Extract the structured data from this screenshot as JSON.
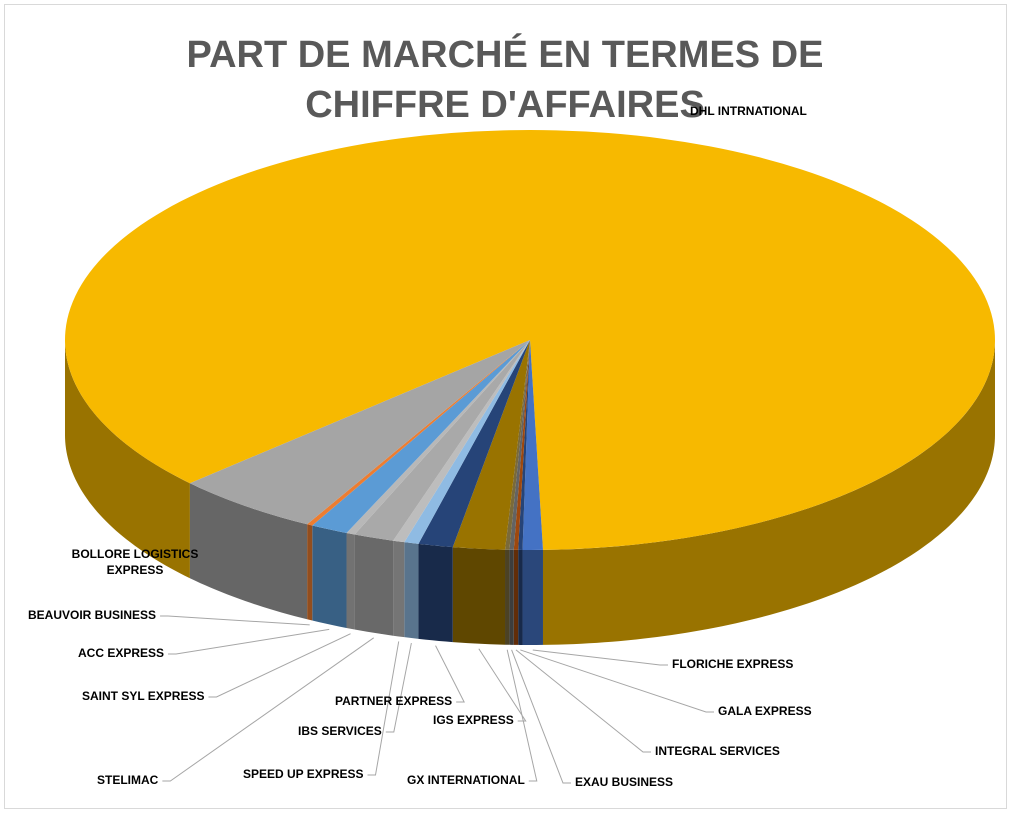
{
  "chart_data": {
    "type": "pie3d",
    "title": "PART DE MARCHÉ EN TERMES DE CHIFFRE D'AFFAIRES",
    "categories": [
      "DHL INTRNATIONAL",
      "FLORICHE EXPRESS",
      "GALA EXPRESS",
      "INTEGRAL SERVICES",
      "EXAU BUSINESS",
      "GX INTERNATIONAL",
      "IGS EXPRESS",
      "PARTNER EXPRESS",
      "IBS SERVICES",
      "SPEED UP EXPRESS",
      "STELIMAC",
      "SAINT SYL EXPRESS",
      "ACC EXPRESS",
      "BEAUVOIR BUSINESS",
      "BOLLORE LOGISTICS EXPRESS"
    ],
    "values": [
      86.5,
      0.7,
      0.15,
      0.15,
      0.15,
      0.15,
      1.8,
      1.2,
      0.5,
      0.4,
      1.4,
      0.3,
      1.3,
      0.2,
      5.1
    ],
    "colors": [
      "#f7b900",
      "#4472c4",
      "#264478",
      "#9e480e",
      "#636363",
      "#7a6a3a",
      "#997300",
      "#264478",
      "#8fbbe3",
      "#bdbdbd",
      "#a9a9a9",
      "#b8b8b8",
      "#5b9bd5",
      "#ed7d31",
      "#a5a5a5"
    ]
  }
}
